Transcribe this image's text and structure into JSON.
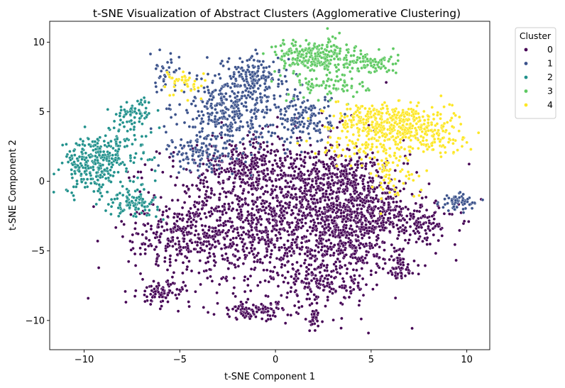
{
  "chart_data": {
    "type": "scatter",
    "title": "t-SNE Visualization of Abstract Clusters (Agglomerative Clustering)",
    "xlabel": "t-SNE Component 1",
    "ylabel": "t-SNE Component 2",
    "xlim": [
      -11.8,
      11.2
    ],
    "ylim": [
      -12.1,
      11.5
    ],
    "xticks": [
      -10,
      -5,
      0,
      5,
      10
    ],
    "yticks": [
      -10,
      -5,
      0,
      5,
      10
    ],
    "xtick_labels": [
      "−10",
      "−5",
      "0",
      "5",
      "10"
    ],
    "ytick_labels": [
      "−10",
      "−5",
      "0",
      "5",
      "10"
    ],
    "grid": false,
    "legend": {
      "title": "Cluster",
      "placement": "upper right, outside plot"
    },
    "series": [
      {
        "name": "0",
        "color": "#440154",
        "regions": [
          {
            "cx": 0.5,
            "cy": -2.5,
            "sx": 3.2,
            "sy": 2.8,
            "n": 1500
          },
          {
            "cx": -4.5,
            "cy": -4.0,
            "sx": 1.6,
            "sy": 1.2,
            "n": 250
          },
          {
            "cx": 4.0,
            "cy": -4.0,
            "sx": 1.0,
            "sy": 1.3,
            "n": 250
          },
          {
            "cx": 3.5,
            "cy": 0.0,
            "sx": 1.4,
            "sy": 1.1,
            "n": 250
          },
          {
            "cx": -1.5,
            "cy": 1.0,
            "sx": 1.2,
            "sy": 1.0,
            "n": 200
          },
          {
            "cx": -6.0,
            "cy": -8.0,
            "sx": 0.6,
            "sy": 0.4,
            "n": 80
          },
          {
            "cx": -1.0,
            "cy": -9.3,
            "sx": 1.0,
            "sy": 0.3,
            "n": 100
          },
          {
            "cx": 2.0,
            "cy": -9.8,
            "sx": 0.2,
            "sy": 0.5,
            "n": 30
          },
          {
            "cx": 6.5,
            "cy": -6.3,
            "sx": 0.4,
            "sy": 0.5,
            "n": 60
          },
          {
            "cx": 7.5,
            "cy": -3.0,
            "sx": 1.0,
            "sy": 0.7,
            "n": 120
          },
          {
            "cx": 2.5,
            "cy": -7.5,
            "sx": 1.2,
            "sy": 0.7,
            "n": 120
          },
          {
            "cx": 5.0,
            "cy": -2.0,
            "sx": 1.0,
            "sy": 0.8,
            "n": 150
          }
        ]
      },
      {
        "name": "1",
        "color": "#3b528b",
        "regions": [
          {
            "cx": -2.5,
            "cy": 5.0,
            "sx": 1.2,
            "sy": 1.3,
            "n": 350
          },
          {
            "cx": -1.0,
            "cy": 7.5,
            "sx": 0.8,
            "sy": 0.8,
            "n": 150
          },
          {
            "cx": 1.5,
            "cy": 4.5,
            "sx": 0.7,
            "sy": 0.9,
            "n": 150
          },
          {
            "cx": -4.0,
            "cy": 2.0,
            "sx": 0.8,
            "sy": 0.7,
            "n": 100
          },
          {
            "cx": 9.5,
            "cy": -1.5,
            "sx": 0.45,
            "sy": 0.3,
            "n": 60
          },
          {
            "cx": -5.8,
            "cy": 7.5,
            "sx": 0.4,
            "sy": 0.8,
            "n": 40
          }
        ]
      },
      {
        "name": "2",
        "color": "#21918c",
        "regions": [
          {
            "cx": -9.5,
            "cy": 1.2,
            "sx": 0.8,
            "sy": 1.0,
            "n": 250
          },
          {
            "cx": -7.5,
            "cy": -1.5,
            "sx": 0.7,
            "sy": 0.5,
            "n": 100
          },
          {
            "cx": -7.3,
            "cy": 5.0,
            "sx": 0.5,
            "sy": 0.5,
            "n": 70
          },
          {
            "cx": -8.0,
            "cy": 2.5,
            "sx": 0.9,
            "sy": 0.9,
            "n": 80
          }
        ]
      },
      {
        "name": "3",
        "color": "#5ec962",
        "regions": [
          {
            "cx": 2.0,
            "cy": 9.0,
            "sx": 1.0,
            "sy": 0.6,
            "n": 250
          },
          {
            "cx": 4.8,
            "cy": 8.5,
            "sx": 0.8,
            "sy": 0.4,
            "n": 90
          },
          {
            "cx": 3.0,
            "cy": 7.0,
            "sx": 1.0,
            "sy": 0.6,
            "n": 80
          }
        ]
      },
      {
        "name": "4",
        "color": "#fde725",
        "regions": [
          {
            "cx": 6.5,
            "cy": 4.0,
            "sx": 1.0,
            "sy": 0.8,
            "n": 300
          },
          {
            "cx": 4.5,
            "cy": 4.5,
            "sx": 1.0,
            "sy": 0.5,
            "n": 120
          },
          {
            "cx": 8.5,
            "cy": 3.5,
            "sx": 0.8,
            "sy": 0.9,
            "n": 100
          },
          {
            "cx": 6.0,
            "cy": 0.5,
            "sx": 0.7,
            "sy": 0.9,
            "n": 60
          },
          {
            "cx": -4.8,
            "cy": 7.0,
            "sx": 0.6,
            "sy": 0.6,
            "n": 40
          },
          {
            "cx": 4.5,
            "cy": 2.5,
            "sx": 1.2,
            "sy": 0.5,
            "n": 80
          }
        ]
      }
    ]
  }
}
